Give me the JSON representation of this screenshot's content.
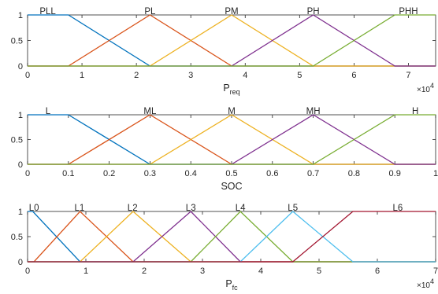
{
  "chart_data": [
    {
      "type": "line",
      "xlabel": "P",
      "xlabel_sub": "req",
      "xlim": [
        0,
        75000
      ],
      "ylim": [
        0,
        1
      ],
      "x_ticks": [
        0,
        10000,
        20000,
        30000,
        40000,
        50000,
        60000,
        70000
      ],
      "x_tick_labels": [
        "0",
        "1",
        "2",
        "3",
        "4",
        "5",
        "6",
        "7"
      ],
      "y_ticks": [
        0,
        0.5,
        1
      ],
      "y_tick_labels": [
        "0",
        "0.5",
        "1"
      ],
      "x_multiplier": "×10",
      "x_multiplier_exp": "4",
      "grid": false,
      "series": [
        {
          "name": "PLL",
          "color": "#0072BD",
          "points": [
            [
              0,
              1
            ],
            [
              7500,
              1
            ],
            [
              22500,
              0
            ],
            [
              75000,
              0
            ]
          ]
        },
        {
          "name": "PL",
          "color": "#D95319",
          "points": [
            [
              0,
              0
            ],
            [
              7500,
              0
            ],
            [
              22500,
              1
            ],
            [
              37500,
              0
            ],
            [
              75000,
              0
            ]
          ]
        },
        {
          "name": "PM",
          "color": "#EDB120",
          "points": [
            [
              0,
              0
            ],
            [
              22500,
              0
            ],
            [
              37500,
              1
            ],
            [
              52500,
              0
            ],
            [
              75000,
              0
            ]
          ]
        },
        {
          "name": "PH",
          "color": "#7E2F8E",
          "points": [
            [
              0,
              0
            ],
            [
              37500,
              0
            ],
            [
              52500,
              1
            ],
            [
              67500,
              0
            ],
            [
              75000,
              0
            ]
          ]
        },
        {
          "name": "PHH",
          "color": "#77AC30",
          "points": [
            [
              0,
              0
            ],
            [
              52500,
              0
            ],
            [
              67500,
              1
            ],
            [
              75000,
              1
            ]
          ]
        }
      ],
      "labels": [
        {
          "text": "PLL",
          "x": 3700
        },
        {
          "text": "PL",
          "x": 22500
        },
        {
          "text": "PM",
          "x": 37500
        },
        {
          "text": "PH",
          "x": 52500
        },
        {
          "text": "PHH",
          "x": 70000
        }
      ]
    },
    {
      "type": "line",
      "xlabel": "SOC",
      "xlabel_sub": "",
      "xlim": [
        0,
        1
      ],
      "ylim": [
        0,
        1
      ],
      "x_ticks": [
        0,
        0.1,
        0.2,
        0.3,
        0.4,
        0.5,
        0.6,
        0.7,
        0.8,
        0.9,
        1
      ],
      "x_tick_labels": [
        "0",
        "0.1",
        "0.2",
        "0.3",
        "0.4",
        "0.5",
        "0.6",
        "0.7",
        "0.8",
        "0.9",
        "1"
      ],
      "y_ticks": [
        0,
        0.5,
        1
      ],
      "y_tick_labels": [
        "0",
        "0.5",
        "1"
      ],
      "x_multiplier": "",
      "x_multiplier_exp": "",
      "grid": false,
      "series": [
        {
          "name": "L",
          "color": "#0072BD",
          "points": [
            [
              0,
              1
            ],
            [
              0.1,
              1
            ],
            [
              0.3,
              0
            ],
            [
              1,
              0
            ]
          ]
        },
        {
          "name": "ML",
          "color": "#D95319",
          "points": [
            [
              0,
              0
            ],
            [
              0.1,
              0
            ],
            [
              0.3,
              1
            ],
            [
              0.5,
              0
            ],
            [
              1,
              0
            ]
          ]
        },
        {
          "name": "M",
          "color": "#EDB120",
          "points": [
            [
              0,
              0
            ],
            [
              0.3,
              0
            ],
            [
              0.5,
              1
            ],
            [
              0.7,
              0
            ],
            [
              1,
              0
            ]
          ]
        },
        {
          "name": "MH",
          "color": "#7E2F8E",
          "points": [
            [
              0,
              0
            ],
            [
              0.5,
              0
            ],
            [
              0.7,
              1
            ],
            [
              0.9,
              0
            ],
            [
              1,
              0
            ]
          ]
        },
        {
          "name": "H",
          "color": "#77AC30",
          "points": [
            [
              0,
              0
            ],
            [
              0.7,
              0
            ],
            [
              0.9,
              1
            ],
            [
              1,
              1
            ]
          ]
        }
      ],
      "labels": [
        {
          "text": "L",
          "x": 0.05
        },
        {
          "text": "ML",
          "x": 0.3
        },
        {
          "text": "M",
          "x": 0.5
        },
        {
          "text": "MH",
          "x": 0.7
        },
        {
          "text": "H",
          "x": 0.95
        }
      ]
    },
    {
      "type": "line",
      "xlabel": "P",
      "xlabel_sub": "fc",
      "xlim": [
        0,
        70000
      ],
      "ylim": [
        0,
        1
      ],
      "x_ticks": [
        0,
        10000,
        20000,
        30000,
        40000,
        50000,
        60000,
        70000
      ],
      "x_tick_labels": [
        "0",
        "1",
        "2",
        "3",
        "4",
        "5",
        "6",
        "7"
      ],
      "y_ticks": [
        0,
        0.5,
        1
      ],
      "y_tick_labels": [
        "0",
        "0.5",
        "1"
      ],
      "x_multiplier": "×10",
      "x_multiplier_exp": "4",
      "grid": false,
      "series": [
        {
          "name": "L0",
          "color": "#0072BD",
          "points": [
            [
              0,
              1
            ],
            [
              900,
              1
            ],
            [
              9000,
              0
            ],
            [
              70000,
              0
            ]
          ]
        },
        {
          "name": "L1",
          "color": "#D95319",
          "points": [
            [
              0,
              0
            ],
            [
              1100,
              0
            ],
            [
              9000,
              1
            ],
            [
              18100,
              0
            ],
            [
              70000,
              0
            ]
          ]
        },
        {
          "name": "L2",
          "color": "#EDB120",
          "points": [
            [
              0,
              0
            ],
            [
              9000,
              0
            ],
            [
              18100,
              1
            ],
            [
              28000,
              0
            ],
            [
              70000,
              0
            ]
          ]
        },
        {
          "name": "L3",
          "color": "#7E2F8E",
          "points": [
            [
              0,
              0
            ],
            [
              18100,
              0
            ],
            [
              28000,
              1
            ],
            [
              36500,
              0
            ],
            [
              70000,
              0
            ]
          ]
        },
        {
          "name": "L4",
          "color": "#77AC30",
          "points": [
            [
              0,
              0
            ],
            [
              28000,
              0
            ],
            [
              36500,
              1
            ],
            [
              45500,
              0
            ],
            [
              70000,
              0
            ]
          ]
        },
        {
          "name": "L5",
          "color": "#4DBEEE",
          "points": [
            [
              0,
              0
            ],
            [
              36500,
              0
            ],
            [
              45500,
              1
            ],
            [
              55800,
              0
            ],
            [
              70000,
              0
            ]
          ]
        },
        {
          "name": "L6",
          "color": "#A2142F",
          "points": [
            [
              0,
              0
            ],
            [
              45500,
              0
            ],
            [
              55800,
              1
            ],
            [
              70000,
              1
            ]
          ]
        }
      ],
      "labels": [
        {
          "text": "L0",
          "x": 1100
        },
        {
          "text": "L1",
          "x": 8900
        },
        {
          "text": "L2",
          "x": 18000
        },
        {
          "text": "L3",
          "x": 28000
        },
        {
          "text": "L4",
          "x": 36500
        },
        {
          "text": "L5",
          "x": 45500
        },
        {
          "text": "L6",
          "x": 63500
        }
      ]
    }
  ]
}
